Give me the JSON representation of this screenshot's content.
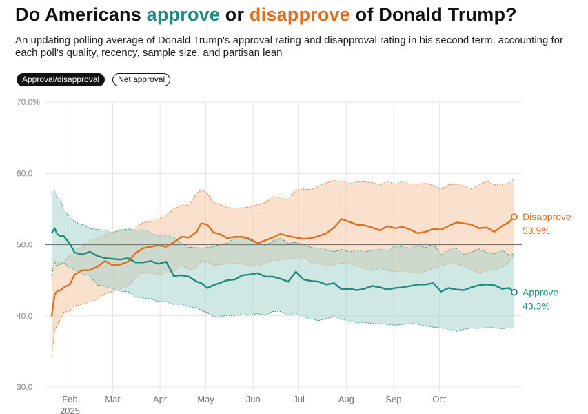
{
  "header": {
    "title_pre": "Do Americans ",
    "title_approve": "approve",
    "title_mid": " or ",
    "title_disapprove": "disapprove",
    "title_post": " of Donald Trump?",
    "subtitle": "An updating polling average of Donald Trump's approval rating and disapproval rating in his second term, accounting for each poll's quality, recency, sample size, and partisan lean"
  },
  "toggles": {
    "approval_disapproval": "Approval/disapproval",
    "net_approval": "Net approval"
  },
  "colors": {
    "approve": "#1f8a7e",
    "disapprove": "#e0701f",
    "approve_band": "#9fd2c9",
    "disapprove_band": "#f6c39e"
  },
  "chart_data": {
    "type": "line",
    "title": "Do Americans approve or disapprove of Donald Trump?",
    "xlabel": "",
    "ylabel": "",
    "x_range_days": [
      -4,
      308
    ],
    "ylim": [
      30,
      70
    ],
    "y_ticks": [
      30,
      40,
      50,
      60,
      70
    ],
    "y_tick_labels": [
      "30.0",
      "40.0",
      "50.0",
      "60.0",
      "70.0%"
    ],
    "x_ticks": [
      {
        "label": "Feb",
        "day": 12
      },
      {
        "label": "Mar",
        "day": 40
      },
      {
        "label": "Apr",
        "day": 71
      },
      {
        "label": "May",
        "day": 101
      },
      {
        "label": "Jun",
        "day": 132
      },
      {
        "label": "Jul",
        "day": 162
      },
      {
        "label": "Aug",
        "day": 193
      },
      {
        "label": "Sep",
        "day": 224
      },
      {
        "label": "Oct",
        "day": 254
      }
    ],
    "year_label": "2025",
    "reference_line": 50,
    "grid": true,
    "series": [
      {
        "name": "Disapprove",
        "end_value_label": "53.9%",
        "days": [
          0,
          2,
          3,
          4,
          6,
          8,
          12,
          15,
          20,
          25,
          30,
          35,
          40,
          45,
          50,
          55,
          60,
          65,
          70,
          75,
          80,
          85,
          90,
          95,
          98,
          102,
          106,
          110,
          115,
          120,
          125,
          130,
          135,
          140,
          145,
          150,
          155,
          160,
          165,
          170,
          175,
          180,
          185,
          190,
          195,
          200,
          205,
          210,
          215,
          220,
          225,
          230,
          235,
          240,
          245,
          250,
          255,
          260,
          265,
          270,
          275,
          280,
          285,
          290,
          295,
          300,
          303
        ],
        "values": [
          39.9,
          43.0,
          43.3,
          43.5,
          43.6,
          44.0,
          44.4,
          45.8,
          46.4,
          46.4,
          46.9,
          47.7,
          47.1,
          47.2,
          47.6,
          48.8,
          49.5,
          49.7,
          49.9,
          49.7,
          50.3,
          51.1,
          51.0,
          51.8,
          53.0,
          52.8,
          51.7,
          51.5,
          50.9,
          51.1,
          51.1,
          50.8,
          50.2,
          50.6,
          51.0,
          51.5,
          51.2,
          51.0,
          50.8,
          50.9,
          51.2,
          51.6,
          52.4,
          53.6,
          53.2,
          52.8,
          52.7,
          52.4,
          52.0,
          52.6,
          52.3,
          52.5,
          52.1,
          51.6,
          51.8,
          52.2,
          52.1,
          52.6,
          53.1,
          53.0,
          52.8,
          52.3,
          52.4,
          51.8,
          52.6,
          53.2,
          53.9
        ],
        "lower": [
          34.2,
          38.0,
          38.4,
          38.9,
          39.5,
          40.5,
          40.7,
          41.4,
          41.6,
          42.0,
          42.3,
          43.1,
          43.4,
          43.8,
          44.2,
          45.3,
          46.1,
          46.0,
          45.8,
          46.0,
          46.2,
          47.1,
          46.5,
          46.8,
          47.7,
          47.6,
          47.1,
          47.2,
          47.3,
          47.4,
          47.3,
          47.0,
          47.0,
          47.4,
          47.8,
          47.8,
          48.0,
          48.0,
          48.1,
          47.5,
          47.3,
          47.0,
          47.2,
          47.4,
          47.3,
          47.0,
          46.6,
          46.3,
          46.7,
          46.4,
          46.2,
          46.3,
          46.1,
          46.0,
          46.3,
          46.7,
          47.0,
          47.3,
          47.3,
          47.0,
          46.5,
          46.0,
          46.4,
          46.4,
          46.9,
          47.6,
          48.5
        ],
        "upper": [
          45.6,
          47.8,
          47.5,
          47.6,
          47.5,
          47.5,
          48.5,
          49.2,
          49.6,
          50.6,
          51.0,
          51.5,
          51.8,
          52.2,
          51.8,
          52.4,
          53.1,
          53.2,
          53.6,
          54.1,
          55.0,
          55.6,
          55.5,
          57.2,
          57.7,
          57.2,
          55.9,
          55.7,
          55.2,
          55.1,
          55.2,
          55.3,
          55.6,
          55.9,
          56.8,
          56.5,
          56.4,
          57.6,
          57.8,
          57.7,
          58.2,
          58.7,
          59.0,
          58.9,
          58.6,
          58.8,
          58.8,
          58.7,
          58.4,
          58.9,
          58.5,
          58.9,
          58.5,
          58.5,
          58.6,
          58.3,
          57.8,
          58.4,
          58.5,
          58.3,
          57.8,
          58.4,
          58.9,
          58.4,
          58.4,
          58.7,
          59.3
        ]
      },
      {
        "name": "Approve",
        "end_value_label": "43.3%",
        "days": [
          0,
          2,
          3,
          4,
          6,
          8,
          12,
          15,
          20,
          25,
          30,
          35,
          40,
          45,
          50,
          55,
          60,
          65,
          70,
          75,
          80,
          85,
          90,
          95,
          98,
          102,
          106,
          110,
          115,
          120,
          125,
          130,
          135,
          140,
          145,
          150,
          155,
          160,
          165,
          170,
          175,
          180,
          185,
          190,
          195,
          200,
          205,
          210,
          215,
          220,
          225,
          230,
          235,
          240,
          245,
          250,
          255,
          260,
          265,
          270,
          275,
          280,
          285,
          290,
          295,
          300,
          303
        ],
        "values": [
          51.6,
          52.3,
          51.8,
          51.4,
          51.2,
          51.2,
          50.1,
          48.9,
          48.6,
          49.0,
          48.4,
          48.1,
          48.0,
          47.9,
          48.1,
          47.5,
          47.5,
          47.7,
          47.3,
          47.6,
          45.6,
          45.7,
          45.5,
          44.8,
          44.6,
          43.9,
          44.3,
          44.6,
          45.0,
          45.1,
          45.7,
          45.8,
          46.0,
          45.5,
          45.5,
          45.2,
          44.8,
          46.2,
          45.1,
          44.9,
          44.8,
          44.4,
          44.6,
          43.7,
          43.8,
          43.6,
          43.8,
          44.2,
          44.0,
          43.7,
          43.9,
          44.0,
          44.2,
          44.4,
          44.4,
          44.6,
          43.4,
          43.9,
          43.7,
          43.6,
          44.0,
          44.3,
          44.4,
          44.3,
          43.8,
          43.9,
          43.3
        ],
        "lower": [
          45.6,
          47.5,
          47.0,
          47.0,
          47.3,
          47.4,
          46.8,
          46.4,
          45.9,
          45.6,
          44.3,
          44.1,
          43.8,
          43.4,
          43.4,
          42.6,
          42.5,
          42.4,
          42.0,
          42.0,
          41.6,
          41.6,
          41.3,
          41.1,
          40.8,
          40.4,
          39.9,
          39.8,
          40.1,
          40.0,
          40.3,
          40.1,
          40.3,
          40.1,
          40.6,
          40.6,
          40.1,
          40.3,
          39.8,
          39.6,
          39.3,
          39.6,
          39.9,
          39.5,
          39.3,
          39.0,
          39.1,
          38.9,
          38.9,
          38.8,
          38.7,
          38.8,
          39.0,
          38.8,
          38.6,
          38.4,
          38.3,
          38.1,
          37.8,
          38.1,
          38.3,
          38.2,
          38.4,
          38.3,
          38.2,
          38.3,
          38.3
        ],
        "upper": [
          57.4,
          57.5,
          57.0,
          56.5,
          56.2,
          54.8,
          53.9,
          53.2,
          52.8,
          52.3,
          52.1,
          52.0,
          51.7,
          52.0,
          52.2,
          52.0,
          52.1,
          51.7,
          51.2,
          51.4,
          51.0,
          50.2,
          49.6,
          49.6,
          49.5,
          49.6,
          49.7,
          50.0,
          50.2,
          51.0,
          51.0,
          50.6,
          50.3,
          49.9,
          50.5,
          50.9,
          50.2,
          50.3,
          50.0,
          49.6,
          49.5,
          49.3,
          49.0,
          49.3,
          49.0,
          49.2,
          49.0,
          49.2,
          49.3,
          49.2,
          49.8,
          49.7,
          49.5,
          49.9,
          49.6,
          50.1,
          48.6,
          49.3,
          49.5,
          48.6,
          48.9,
          49.4,
          48.9,
          48.7,
          49.2,
          48.5,
          48.8
        ]
      }
    ]
  }
}
